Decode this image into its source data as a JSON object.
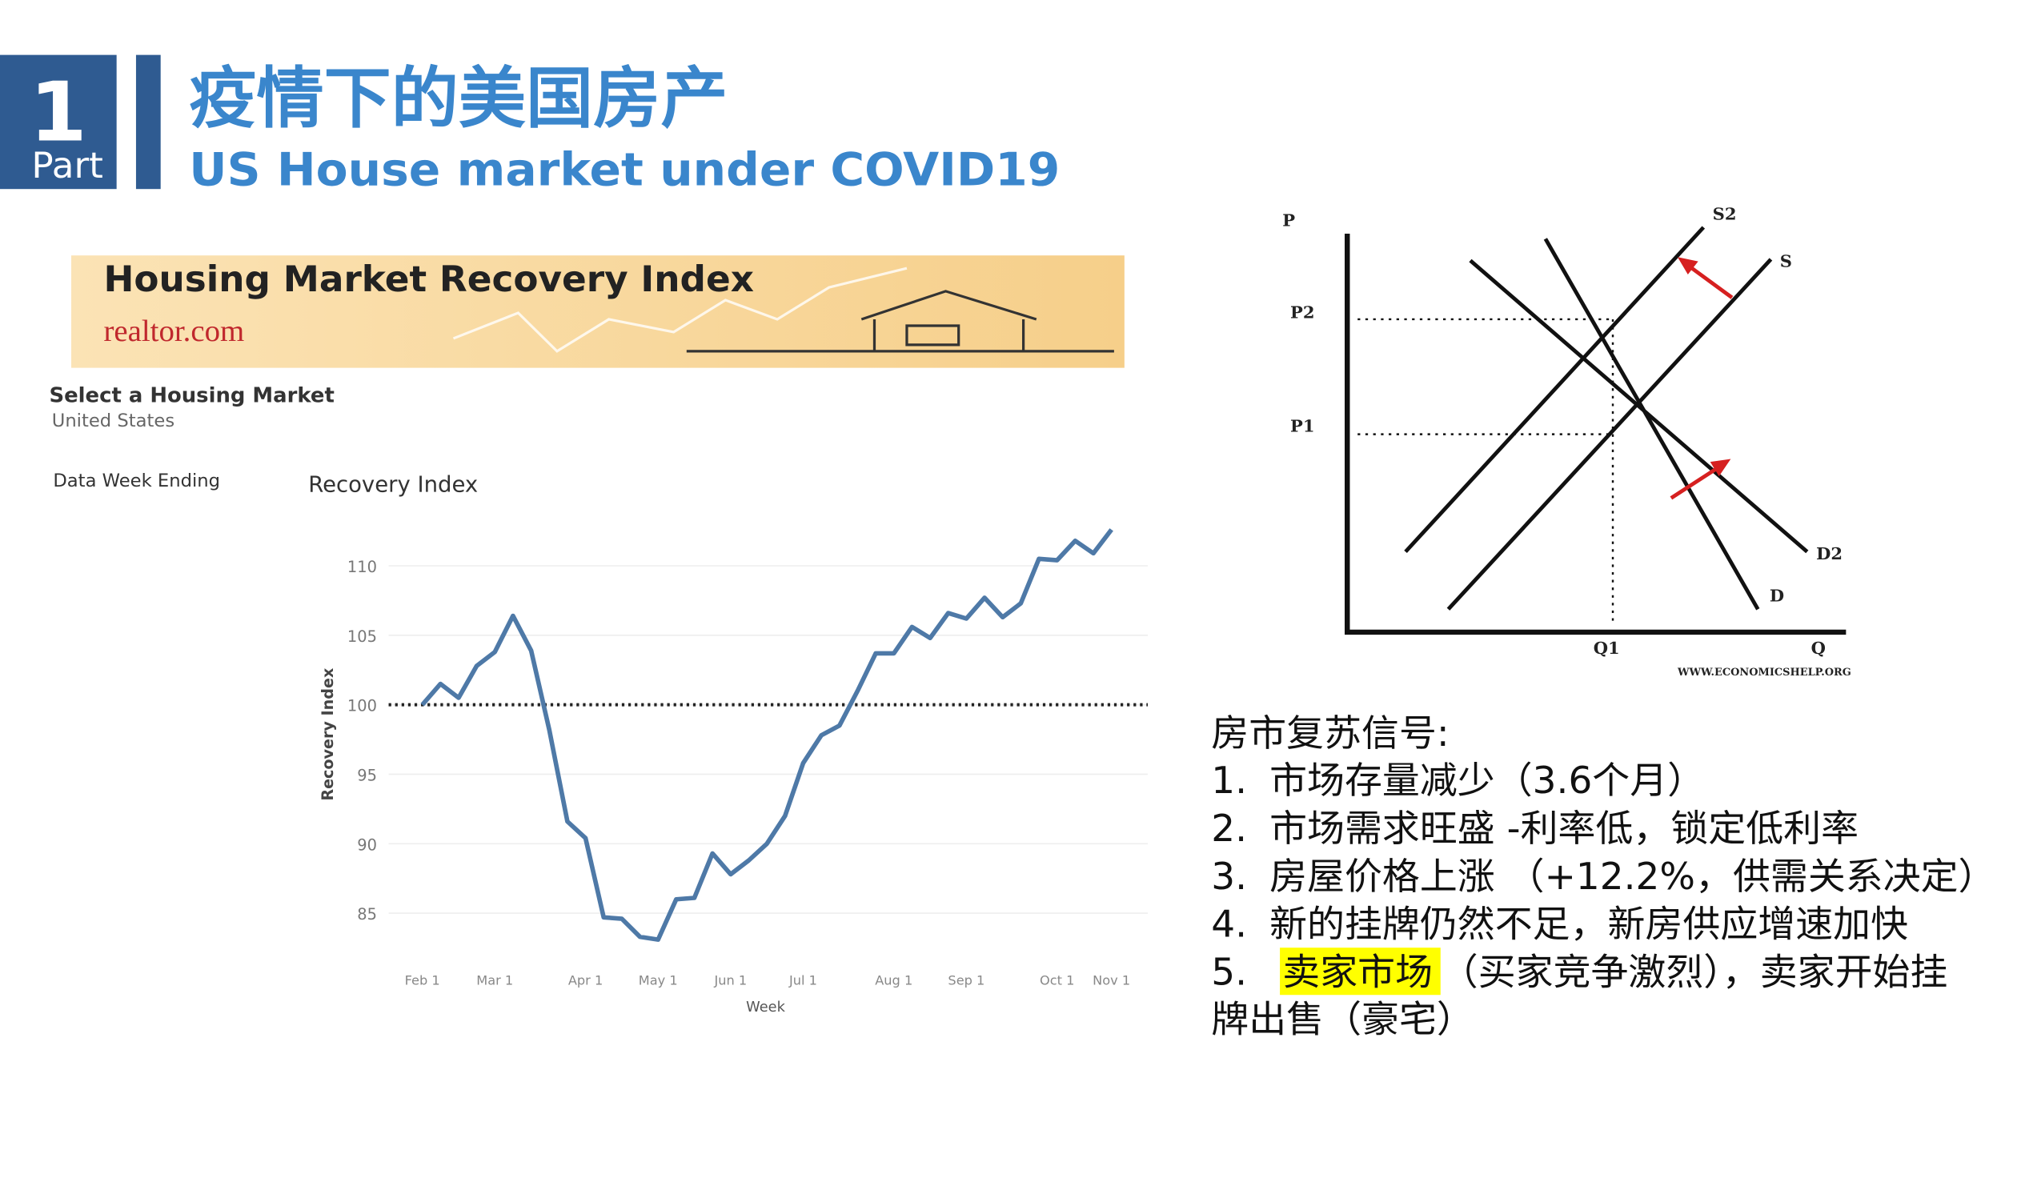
{
  "header": {
    "number": "1",
    "part": "Part",
    "title": "疫情下的美国房产",
    "subtitle": "US House market under COVID19"
  },
  "banner": {
    "title": "Housing Market Recovery Index",
    "brand": "realtor.com"
  },
  "filters": {
    "label": "Select a Housing Market",
    "value": "United States",
    "week_label": "Data Week Ending"
  },
  "chart_data": {
    "type": "line",
    "title": "Recovery Index",
    "y_label": "Recovery Index",
    "x_label": "Week",
    "categories": [
      "Feb 1",
      null,
      null,
      null,
      "Mar 1",
      null,
      null,
      null,
      null,
      "Apr 1",
      null,
      null,
      null,
      "May 1",
      null,
      null,
      null,
      "Jun 1",
      null,
      null,
      null,
      "Jul 1",
      null,
      null,
      null,
      null,
      "Aug 1",
      null,
      null,
      null,
      "Sep 1",
      null,
      null,
      null,
      null,
      "Oct 1",
      null,
      null,
      "Nov 1"
    ],
    "series": [
      {
        "name": "Recovery Index",
        "color": "#4e79a7",
        "values": [
          100,
          101.5,
          100.5,
          102.8,
          103.8,
          106.4,
          103.9,
          98.2,
          91.6,
          90.4,
          84.7,
          84.6,
          83.3,
          83.1,
          86.0,
          86.1,
          89.3,
          87.8,
          88.8,
          90.0,
          92.0,
          95.8,
          97.8,
          98.5,
          101.0,
          103.7,
          103.7,
          105.6,
          104.8,
          106.6,
          106.2,
          107.7,
          106.3,
          107.3,
          110.5,
          110.4,
          111.8,
          110.9,
          112.6
        ]
      }
    ],
    "ylim": [
      82,
      114
    ],
    "yticks": [
      85,
      90,
      95,
      100,
      105,
      110
    ],
    "reference_line": 100,
    "grid": true
  },
  "diagram": {
    "p": "P",
    "p2": "P2",
    "p1": "P1",
    "s2": "S2",
    "s": "S",
    "d2": "D2",
    "d": "D",
    "q1": "Q1",
    "q": "Q",
    "source": "WWW.ECONOMICSHELP.ORG"
  },
  "signals": {
    "title": "房市复苏信号:",
    "items": [
      {
        "number": "1.",
        "text": "市场存量减少（3.6个月）"
      },
      {
        "number": "2.",
        "text": "市场需求旺盛 -利率低，锁定低利率"
      },
      {
        "number": "3.",
        "text": "房屋价格上涨 （+12.2%，供需关系决定）"
      },
      {
        "number": "4.",
        "text": "新的挂牌仍然不足，新房供应增速加快"
      },
      {
        "number": "5.",
        "highlight": "卖家市场",
        "text": "（买家竞争激烈），卖家开始挂",
        "continuation": "牌出售（豪宅）"
      }
    ]
  }
}
